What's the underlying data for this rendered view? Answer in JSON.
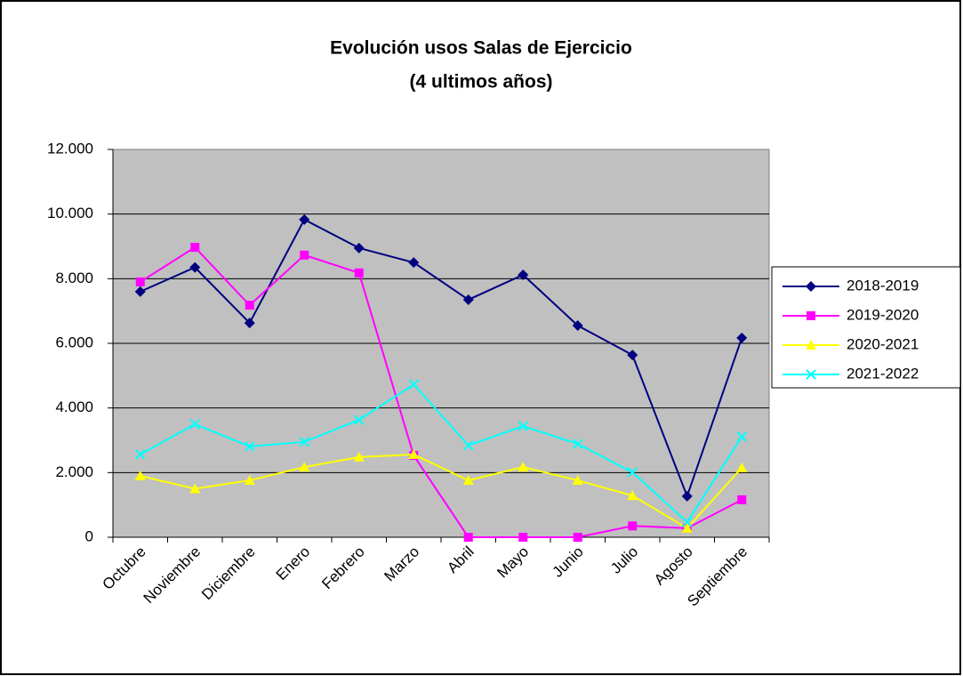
{
  "chart_data": {
    "type": "line",
    "title": [
      "Evolución usos Salas de Ejercicio",
      "(4 ultimos años)"
    ],
    "categories": [
      "Octubre",
      "Noviembre",
      "Diciembre",
      "Enero",
      "Febrero",
      "Marzo",
      "Abril",
      "Mayo",
      "Junio",
      "Julio",
      "Agosto",
      "Septiembre"
    ],
    "series": [
      {
        "name": "2018-2019",
        "color": "#000080",
        "marker": "diamond",
        "values": [
          7600,
          8350,
          6630,
          9830,
          8950,
          8500,
          7350,
          8120,
          6550,
          5640,
          1270,
          6170
        ]
      },
      {
        "name": "2019-2020",
        "color": "#ff00ff",
        "marker": "square",
        "values": [
          7900,
          8970,
          7180,
          8730,
          8180,
          2530,
          0,
          0,
          0,
          350,
          280,
          1160
        ]
      },
      {
        "name": "2020-2021",
        "color": "#ffff00",
        "marker": "triangle",
        "values": [
          1900,
          1500,
          1760,
          2170,
          2480,
          2560,
          1760,
          2170,
          1760,
          1290,
          280,
          2150
        ]
      },
      {
        "name": "2021-2022",
        "color": "#00ffff",
        "marker": "x",
        "values": [
          2560,
          3500,
          2810,
          2950,
          3630,
          4730,
          2840,
          3440,
          2890,
          2010,
          470,
          3110
        ]
      }
    ],
    "ylim": [
      0,
      12000
    ],
    "yticks": [
      0,
      {
        "value": 2000,
        "label": "2.000"
      },
      {
        "value": 4000,
        "label": "4.000"
      },
      {
        "value": 6000,
        "label": "6.000"
      },
      {
        "value": 8000,
        "label": "8.000"
      },
      {
        "value": 10000,
        "label": "10.000"
      },
      {
        "value": 12000,
        "label": "12.000"
      }
    ],
    "grid": true,
    "legend": "right",
    "plot_background": "#c0c0c0"
  }
}
